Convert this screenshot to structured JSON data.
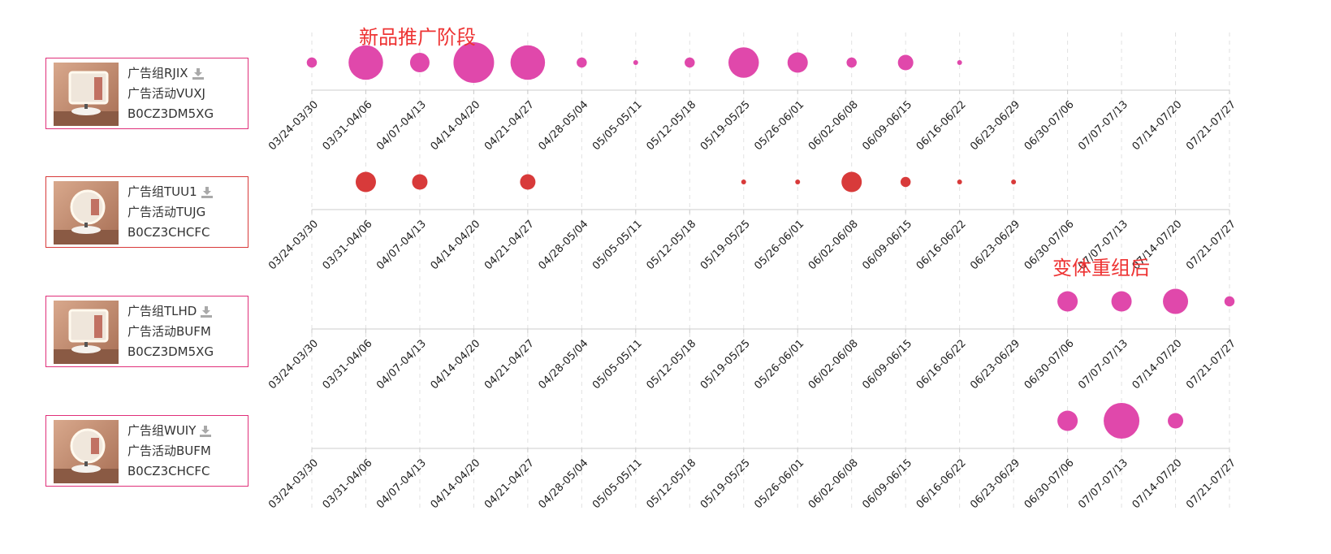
{
  "annotations": {
    "launch_stage": "新品推广阶段",
    "after_regroup": "变体重组后"
  },
  "colors": {
    "pink": "#e048ab",
    "red": "#d83a3a",
    "axis": "#cccccc",
    "grid": "#e2e2e2"
  },
  "download_icon": "download-icon",
  "rows": [
    {
      "group": "广告组RJIX",
      "campaign": "广告活动VUXJ",
      "asin": "B0CZ3DM5XG",
      "color": "pink",
      "thumb": "square-mirror"
    },
    {
      "group": "广告组TUU1",
      "campaign": "广告活动TUJG",
      "asin": "B0CZ3CHCFC",
      "color": "red",
      "thumb": "round-mirror"
    },
    {
      "group": "广告组TLHD",
      "campaign": "广告活动BUFM",
      "asin": "B0CZ3DM5XG",
      "color": "pink",
      "thumb": "square-mirror"
    },
    {
      "group": "广告组WUIY",
      "campaign": "广告活动BUFM",
      "asin": "B0CZ3CHCFC",
      "color": "pink",
      "thumb": "round-mirror"
    }
  ],
  "chart_data": {
    "type": "scatter",
    "categories": [
      "03/24-03/30",
      "03/31-04/06",
      "04/07-04/13",
      "04/14-04/20",
      "04/21-04/27",
      "04/28-05/04",
      "05/05-05/11",
      "05/12-05/18",
      "05/19-05/25",
      "05/26-06/01",
      "06/02-06/08",
      "06/09-06/15",
      "06/16-06/22",
      "06/23-06/29",
      "06/30-07/06",
      "07/07-07/13",
      "07/14-07/20",
      "07/21-07/27"
    ],
    "size_scale": "relative bubble size (max 1.0)",
    "series": [
      {
        "values": [
          0.25,
          0.85,
          0.48,
          1.0,
          0.85,
          0.25,
          0.12,
          0.25,
          0.75,
          0.5,
          0.25,
          0.38,
          0.12,
          null,
          null,
          null,
          null,
          null
        ]
      },
      {
        "values": [
          null,
          0.5,
          0.38,
          null,
          0.38,
          null,
          null,
          null,
          0.12,
          0.12,
          0.5,
          0.25,
          0.12,
          0.12,
          null,
          null,
          null,
          null
        ]
      },
      {
        "values": [
          null,
          null,
          null,
          null,
          null,
          null,
          null,
          null,
          null,
          null,
          null,
          null,
          null,
          null,
          0.5,
          0.5,
          0.62,
          0.25
        ]
      },
      {
        "values": [
          null,
          null,
          null,
          null,
          null,
          null,
          null,
          null,
          null,
          null,
          null,
          null,
          null,
          null,
          0.5,
          0.88,
          0.38,
          null
        ]
      }
    ]
  }
}
